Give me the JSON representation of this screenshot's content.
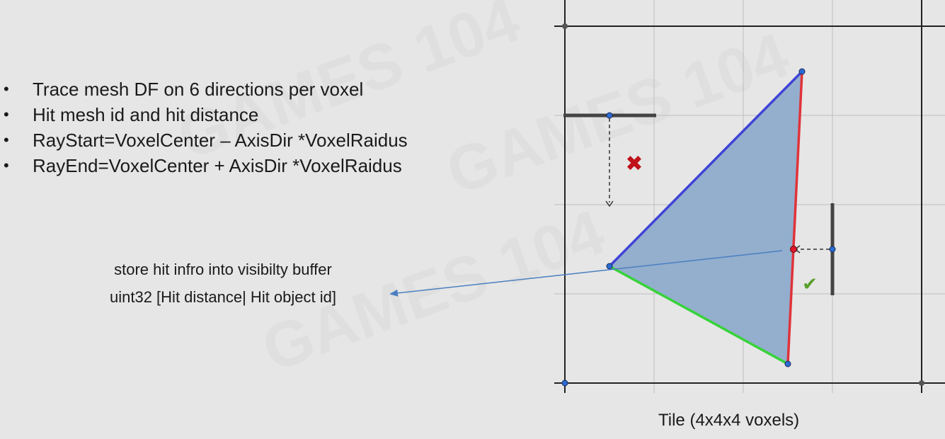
{
  "bullets": [
    "Trace mesh DF on 6 directions per voxel",
    "Hit mesh id and hit distance",
    "RayStart=VoxelCenter – AxisDir *VoxelRaidus",
    "RayEnd=VoxelCenter + AxisDir *VoxelRaidus"
  ],
  "bullet_glyph": "•",
  "note": {
    "line1": "store hit infro into visibilty buffer",
    "line2": "uint32  [Hit distance| Hit object id]"
  },
  "caption": "Tile (4x4x4 voxels)",
  "markers": {
    "fail": "✖",
    "success": "✔"
  },
  "watermarks": [
    "GAMES 104",
    "GAMES 104",
    "GAMES 104"
  ],
  "colors": {
    "triangle_fill": "#8fabcc",
    "edge_blue": "#3f43d6",
    "edge_red": "#e0333a",
    "edge_green": "#37d33a",
    "arrow": "#4a7fc1",
    "fail_mark": "#c0121b",
    "success_mark": "#5aa02c",
    "grid": "#bdbdbd",
    "frame": "#222222"
  }
}
